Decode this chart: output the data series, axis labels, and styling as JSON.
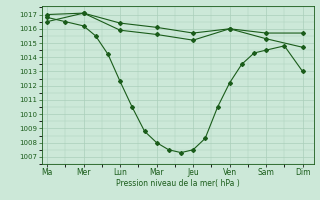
{
  "xlabel": "Pression niveau de la mer( hPa )",
  "background_color": "#cce8d8",
  "line_color": "#1a5c1a",
  "grid_color": "#aacfba",
  "ylim_min": 1006.5,
  "ylim_max": 1017.6,
  "yticks": [
    1007,
    1008,
    1009,
    1010,
    1011,
    1012,
    1013,
    1014,
    1015,
    1016,
    1017
  ],
  "xtick_labels": [
    "Ma",
    "Mer",
    "Lun",
    "Mar",
    "Jeu",
    "Ven",
    "Sam",
    "Dim"
  ],
  "xlim_min": -0.15,
  "xlim_max": 7.3,
  "line1_x": [
    0,
    1,
    2,
    3,
    4,
    5,
    6,
    7
  ],
  "line1_y": [
    1016.5,
    1017.1,
    1016.4,
    1016.1,
    1015.7,
    1016.0,
    1015.7,
    1015.7
  ],
  "line2_x": [
    0,
    1,
    2,
    3,
    4,
    5,
    6,
    7
  ],
  "line2_y": [
    1017.0,
    1017.1,
    1015.9,
    1015.6,
    1015.2,
    1016.0,
    1015.3,
    1014.7
  ],
  "line3_x": [
    0,
    0.5,
    1.0,
    1.33,
    1.67,
    2.0,
    2.33,
    2.67,
    3.0,
    3.33,
    3.67,
    4.0,
    4.33,
    4.67,
    5.0,
    5.33,
    5.67,
    6.0,
    6.5,
    7.0
  ],
  "line3_y": [
    1016.8,
    1016.5,
    1016.2,
    1015.5,
    1014.2,
    1012.3,
    1010.5,
    1008.8,
    1008.0,
    1007.5,
    1007.3,
    1007.5,
    1008.3,
    1010.5,
    1012.2,
    1013.5,
    1014.3,
    1014.5,
    1014.8,
    1013.0
  ],
  "ylabel_fontsize": 5.5,
  "ytick_fontsize": 5.0,
  "xtick_fontsize": 5.5,
  "linewidth": 0.8,
  "markersize": 2.0
}
